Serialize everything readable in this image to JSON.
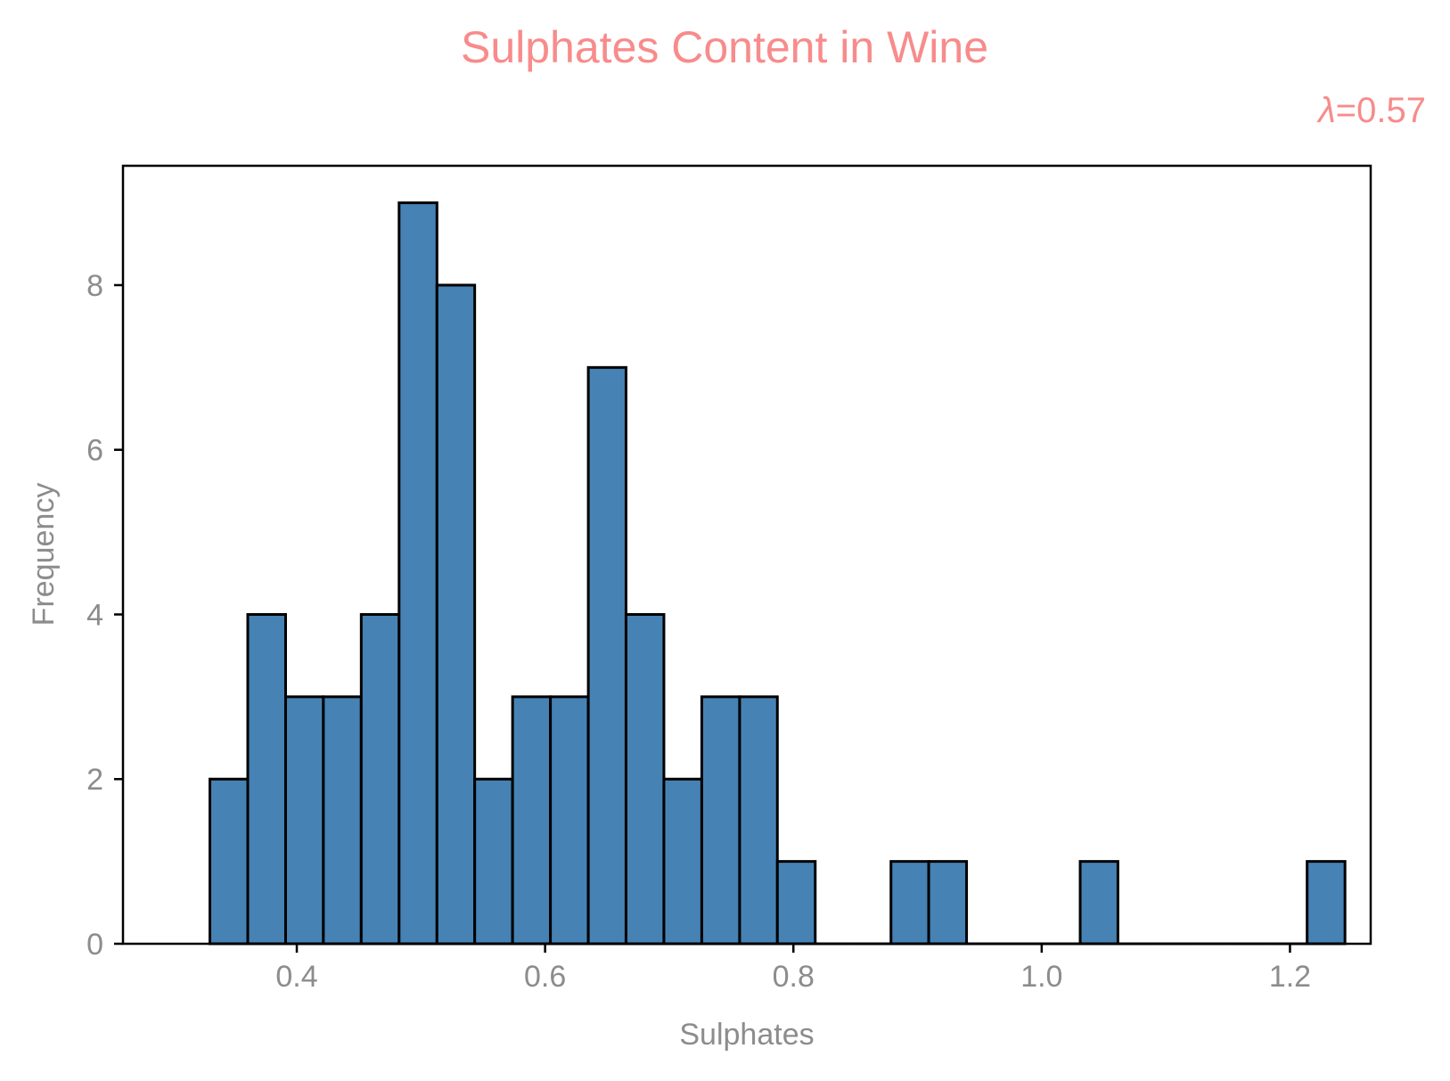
{
  "chart_data": {
    "type": "bar",
    "histogram": true,
    "title": "Sulphates Content in Wine",
    "annotation": {
      "symbol": "λ",
      "text": "=0.57"
    },
    "xlabel": "Sulphates",
    "ylabel": "Frequency",
    "xlim": [
      0.26,
      1.265
    ],
    "ylim": [
      0,
      9.45
    ],
    "x_ticks": [
      0.4,
      0.6,
      0.8,
      1.0,
      1.2
    ],
    "x_tick_labels": [
      "0.4",
      "0.6",
      "0.8",
      "1.0",
      "1.2"
    ],
    "y_ticks": [
      0,
      2,
      4,
      6,
      8
    ],
    "y_tick_labels": [
      "0",
      "2",
      "4",
      "6",
      "8"
    ],
    "bin_edges": [
      0.33,
      0.3605,
      0.391,
      0.4214,
      0.4519,
      0.4824,
      0.5129,
      0.5433,
      0.5738,
      0.6043,
      0.6348,
      0.6652,
      0.6957,
      0.7262,
      0.7567,
      0.7871,
      0.8176,
      0.8481,
      0.8786,
      0.909,
      0.9395,
      0.97,
      1.0005,
      1.031,
      1.0614,
      1.0919,
      1.1224,
      1.1529,
      1.1833,
      1.2138,
      1.2443
    ],
    "counts": [
      2,
      4,
      3,
      3,
      4,
      9,
      8,
      2,
      3,
      3,
      7,
      4,
      2,
      3,
      3,
      1,
      0,
      0,
      1,
      1,
      0,
      0,
      0,
      1,
      0,
      0,
      0,
      0,
      0,
      1
    ],
    "grid": false,
    "legend": "none",
    "colors": {
      "bar_fill": "#4682b4",
      "bar_edge": "#000000",
      "title": "#f88b8b",
      "annotation": "#f88b8b",
      "axis_text": "#8c8c8c",
      "frame": "#000000"
    }
  }
}
